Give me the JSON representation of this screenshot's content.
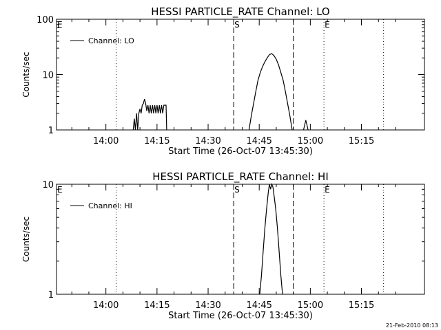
{
  "chart_data": [
    {
      "type": "line",
      "title": "HESSI PARTICLE_RATE Channel: LO",
      "xlabel": "Start Time (26-Oct-07 13:45:30)",
      "ylabel": "Counts/sec",
      "yscale": "log",
      "xlim": [
        "13:45:30",
        "15:33:30"
      ],
      "ylim": [
        1,
        100
      ],
      "x_ticks": [
        "14:00",
        "14:15",
        "14:30",
        "14:45",
        "15:00",
        "15:15"
      ],
      "y_ticks": [
        "1",
        "10",
        "100"
      ],
      "legend": {
        "position": "top-left",
        "entries": [
          "Channel: LO"
        ]
      },
      "markers": [
        {
          "label": "E",
          "time": "13:45:30",
          "style": "dotted"
        },
        {
          "label": "",
          "time": "14:03:00",
          "style": "dotted"
        },
        {
          "label": "S",
          "time": "14:37:30",
          "style": "dashed"
        },
        {
          "label": "",
          "time": "14:55:00",
          "style": "dashed"
        },
        {
          "label": "E",
          "time": "15:04:00",
          "style": "dotted"
        },
        {
          "label": "",
          "time": "15:21:30",
          "style": "dotted"
        }
      ],
      "series": [
        {
          "name": "Channel: LO",
          "segments": [
            [
              [
                "14:08:00",
                1
              ],
              [
                "14:08:20",
                1.6
              ],
              [
                "14:08:40",
                1
              ],
              [
                "14:09:00",
                2
              ],
              [
                "14:09:20",
                1
              ],
              [
                "14:09:40",
                2
              ],
              [
                "14:10:00",
                2.4
              ],
              [
                "14:10:20",
                2
              ],
              [
                "14:10:40",
                2.8
              ],
              [
                "14:11:00",
                3
              ],
              [
                "14:11:20",
                3.6
              ],
              [
                "14:11:40",
                3
              ],
              [
                "14:12:00",
                2.2
              ],
              [
                "14:12:20",
                2.8
              ],
              [
                "14:12:40",
                2
              ],
              [
                "14:13:00",
                2.8
              ],
              [
                "14:13:20",
                2
              ],
              [
                "14:13:40",
                2.8
              ],
              [
                "14:14:00",
                2
              ],
              [
                "14:14:20",
                2.8
              ],
              [
                "14:14:40",
                2
              ],
              [
                "14:15:00",
                2.8
              ],
              [
                "14:15:20",
                2
              ],
              [
                "14:15:40",
                2.8
              ],
              [
                "14:16:00",
                2
              ],
              [
                "14:16:20",
                2.8
              ],
              [
                "14:16:40",
                2
              ],
              [
                "14:17:00",
                2.8
              ],
              [
                "14:17:20",
                2.8
              ],
              [
                "14:17:40",
                2.8
              ],
              [
                "14:17:50",
                1
              ]
            ],
            [
              [
                "14:42:00",
                1
              ],
              [
                "14:42:40",
                1.8
              ],
              [
                "14:43:20",
                3
              ],
              [
                "14:44:00",
                5
              ],
              [
                "14:44:40",
                8
              ],
              [
                "14:45:20",
                11
              ],
              [
                "14:46:00",
                14
              ],
              [
                "14:46:40",
                17
              ],
              [
                "14:47:20",
                20
              ],
              [
                "14:48:00",
                23
              ],
              [
                "14:48:40",
                24
              ],
              [
                "14:49:20",
                22
              ],
              [
                "14:50:00",
                19
              ],
              [
                "14:50:40",
                15
              ],
              [
                "14:51:20",
                11
              ],
              [
                "14:52:00",
                8
              ],
              [
                "14:52:40",
                5
              ],
              [
                "14:53:20",
                3
              ],
              [
                "14:54:00",
                1.8
              ],
              [
                "14:54:40",
                1
              ]
            ],
            [
              [
                "14:58:00",
                1
              ],
              [
                "14:58:40",
                1.5
              ],
              [
                "14:59:20",
                1
              ]
            ]
          ]
        }
      ]
    },
    {
      "type": "line",
      "title": "HESSI PARTICLE_RATE Channel: HI",
      "xlabel": "Start Time (26-Oct-07 13:45:30)",
      "ylabel": "Counts/sec",
      "yscale": "log",
      "xlim": [
        "13:45:30",
        "15:33:30"
      ],
      "ylim": [
        1,
        10
      ],
      "x_ticks": [
        "14:00",
        "14:15",
        "14:30",
        "14:45",
        "15:00",
        "15:15"
      ],
      "y_ticks": [
        "1",
        "10"
      ],
      "legend": {
        "position": "top-left",
        "entries": [
          "Channel: HI"
        ]
      },
      "markers": [
        {
          "label": "E",
          "time": "13:45:30",
          "style": "dotted"
        },
        {
          "label": "",
          "time": "14:03:00",
          "style": "dotted"
        },
        {
          "label": "S",
          "time": "14:37:30",
          "style": "dashed"
        },
        {
          "label": "",
          "time": "14:55:00",
          "style": "dashed"
        },
        {
          "label": "E",
          "time": "15:04:00",
          "style": "dotted"
        },
        {
          "label": "",
          "time": "15:21:30",
          "style": "dotted"
        }
      ],
      "series": [
        {
          "name": "Channel: HI",
          "segments": [
            [
              [
                "14:45:10",
                1
              ],
              [
                "14:45:40",
                1.5
              ],
              [
                "14:46:10",
                2.5
              ],
              [
                "14:46:40",
                4
              ],
              [
                "14:47:10",
                6
              ],
              [
                "14:47:40",
                8.5
              ],
              [
                "14:48:00",
                10
              ],
              [
                "14:48:20",
                9
              ],
              [
                "14:48:40",
                10
              ],
              [
                "14:49:00",
                9.5
              ],
              [
                "14:49:20",
                8
              ],
              [
                "14:49:50",
                6
              ],
              [
                "14:50:20",
                4
              ],
              [
                "14:50:50",
                2.5
              ],
              [
                "14:51:20",
                1.5
              ],
              [
                "14:51:50",
                1
              ]
            ]
          ]
        }
      ]
    }
  ],
  "footer": {
    "date_stamp": "21-Feb-2010 08:13"
  }
}
